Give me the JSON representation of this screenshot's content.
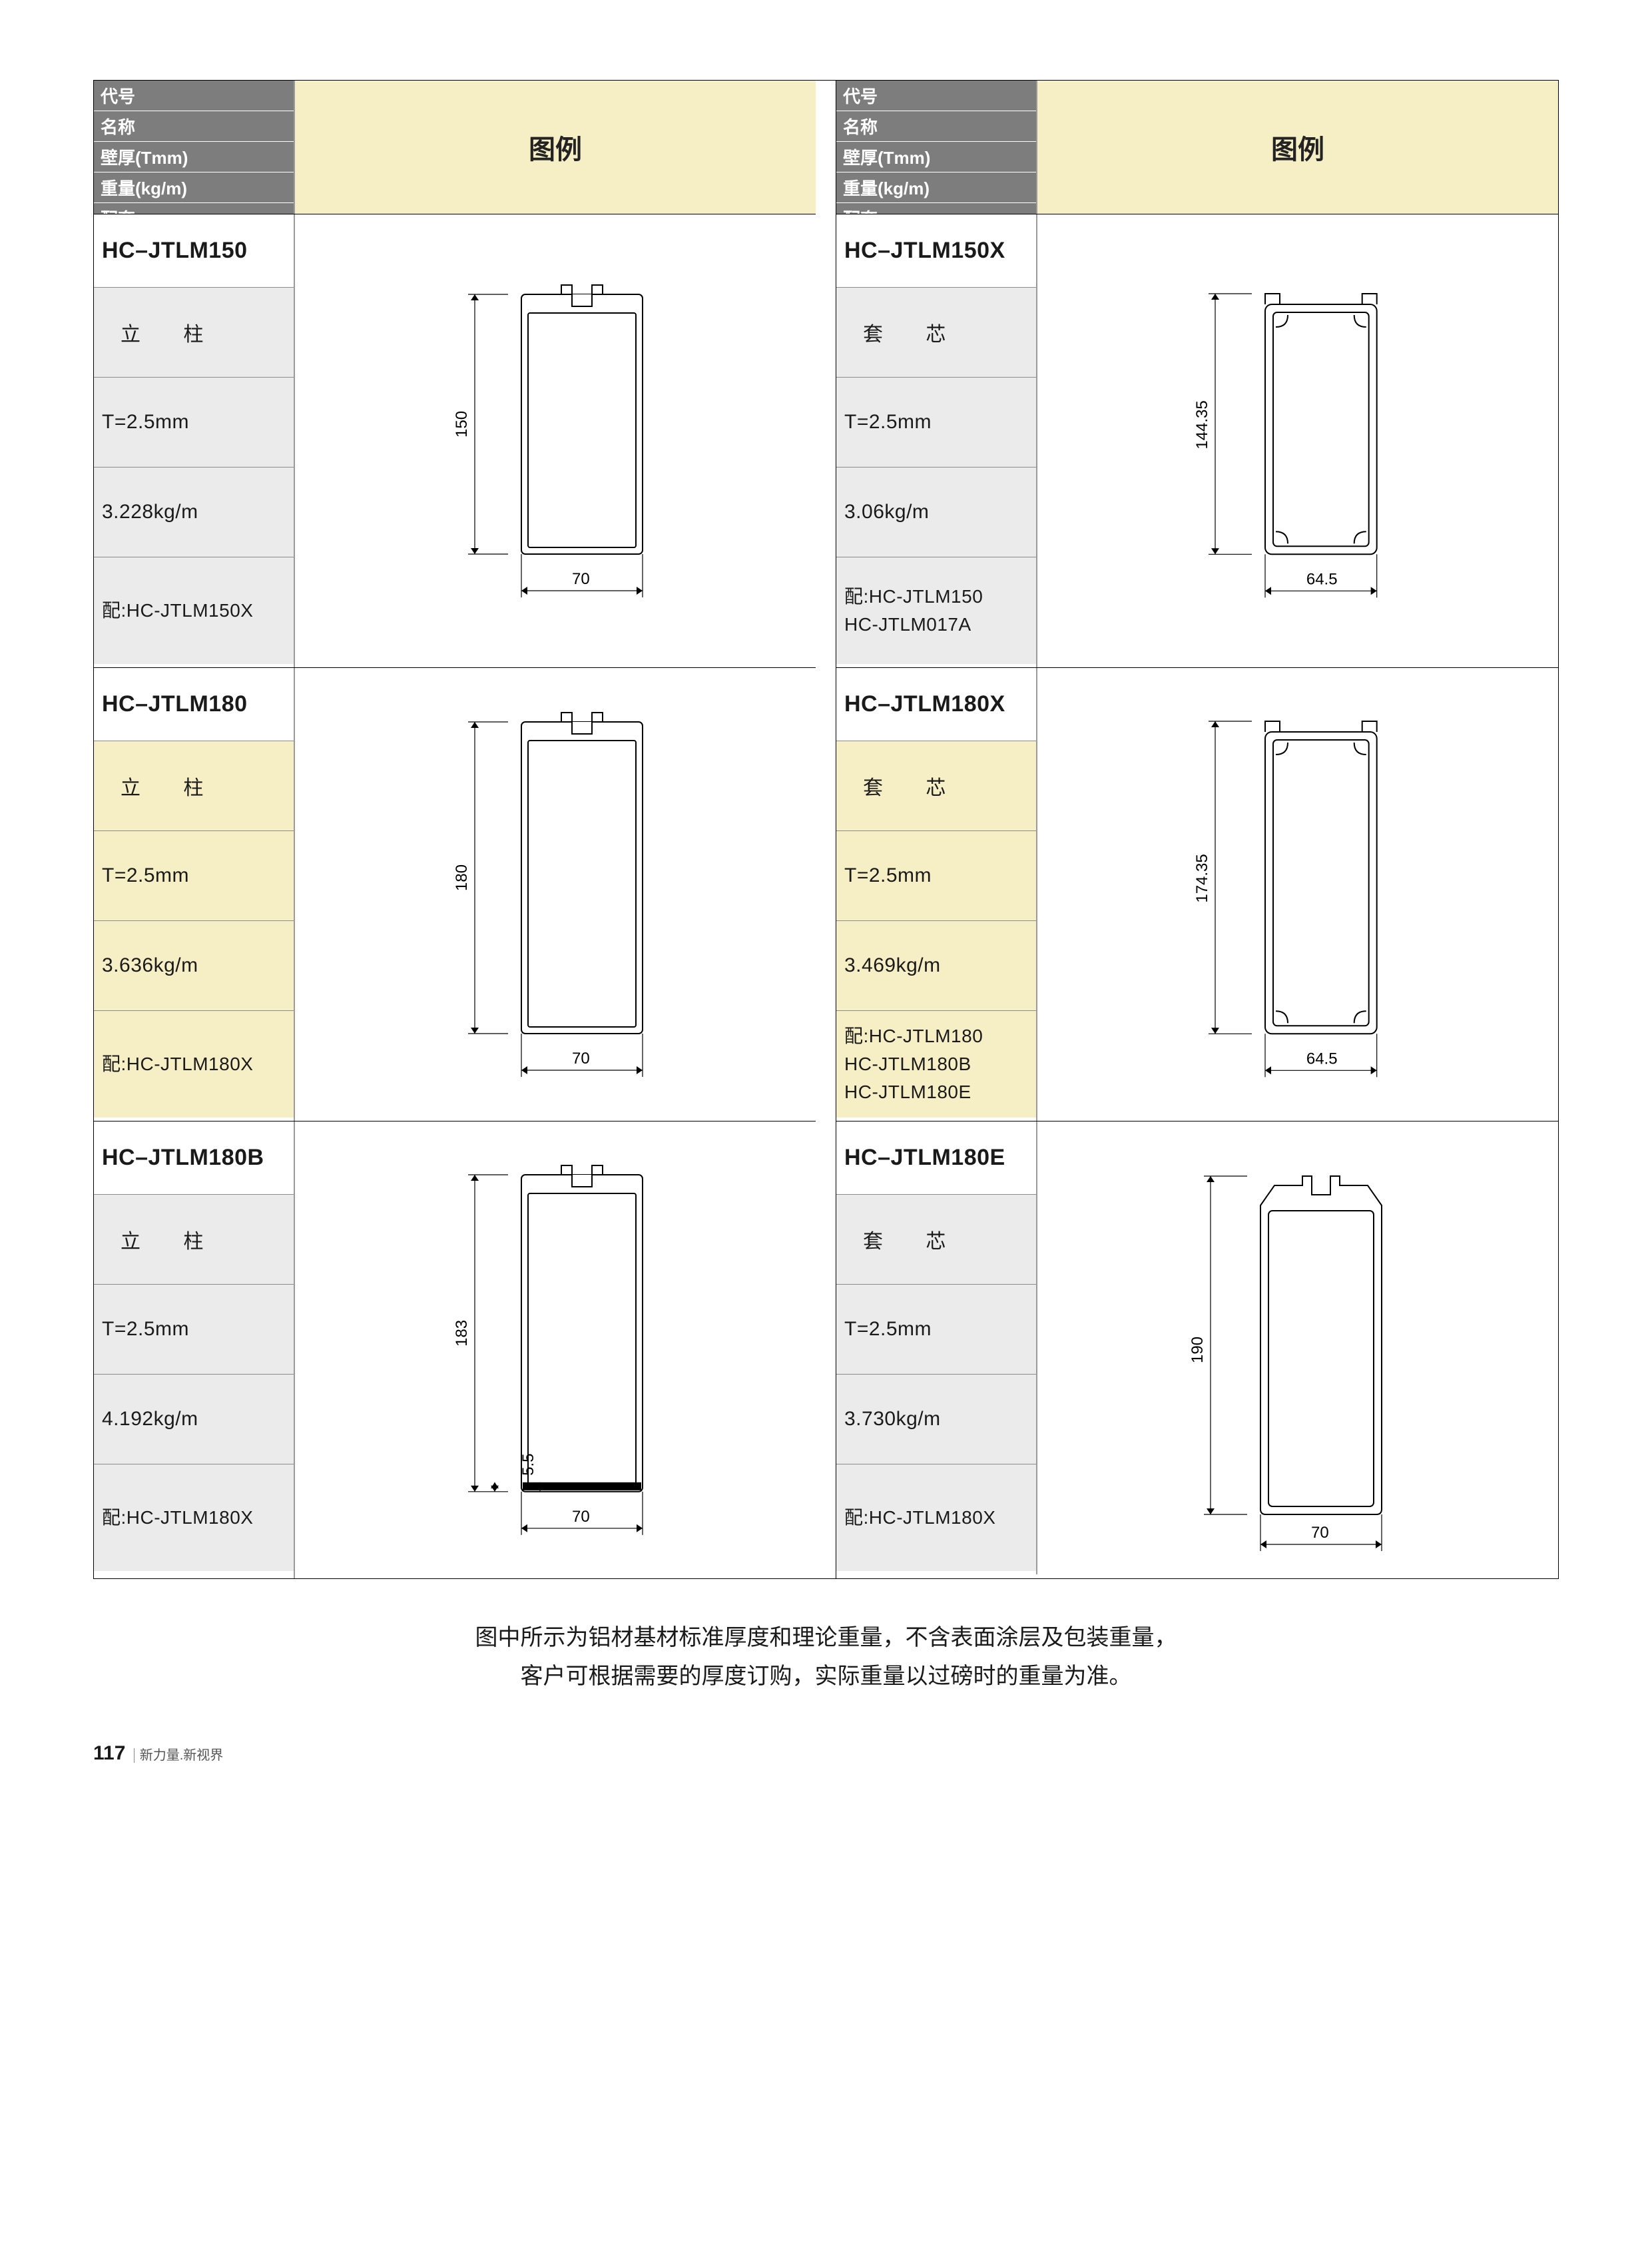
{
  "header": {
    "labels": [
      "代号",
      "名称",
      "壁厚(Tmm)",
      "重量(kg/m)",
      "配套"
    ],
    "title": "图例"
  },
  "columns": [
    {
      "products": [
        {
          "code": "HC–JTLM150",
          "name": "立 柱",
          "thickness": "T=2.5mm",
          "weight": "3.228kg/m",
          "pair": "配:HC-JTLM150X",
          "alt": false,
          "diagram": {
            "type": "post",
            "h": 150,
            "w": 70,
            "extra": null
          }
        },
        {
          "code": "HC–JTLM180",
          "name": "立 柱",
          "thickness": "T=2.5mm",
          "weight": "3.636kg/m",
          "pair": "配:HC-JTLM180X",
          "alt": true,
          "diagram": {
            "type": "post",
            "h": 180,
            "w": 70,
            "extra": null
          }
        },
        {
          "code": "HC–JTLM180B",
          "name": "立 柱",
          "thickness": "T=2.5mm",
          "weight": "4.192kg/m",
          "pair": "配:HC-JTLM180X",
          "alt": false,
          "diagram": {
            "type": "post",
            "h": 183,
            "w": 70,
            "extra": 5.5
          }
        }
      ]
    },
    {
      "products": [
        {
          "code": "HC–JTLM150X",
          "name": "套 芯",
          "thickness": "T=2.5mm",
          "weight": "3.06kg/m",
          "pair": "配:HC-JTLM150\n     HC-JTLM017A",
          "alt": false,
          "diagram": {
            "type": "core",
            "h": 144.35,
            "w": 64.5
          }
        },
        {
          "code": "HC–JTLM180X",
          "name": "套 芯",
          "thickness": "T=2.5mm",
          "weight": "3.469kg/m",
          "pair": "配:HC-JTLM180\n     HC-JTLM180B\n     HC-JTLM180E",
          "alt": true,
          "diagram": {
            "type": "core",
            "h": 174.35,
            "w": 64.5
          }
        },
        {
          "code": "HC–JTLM180E",
          "name": "套 芯",
          "thickness": "T=2.5mm",
          "weight": "3.730kg/m",
          "pair": "配:HC-JTLM180X",
          "alt": false,
          "diagram": {
            "type": "coreE",
            "h": 190,
            "w": 70
          }
        }
      ]
    }
  ],
  "footnote": "图中所示为铝材基材标准厚度和理论重量，不含表面涂层及包装重量，\n客户可根据需要的厚度订购，实际重量以过磅时的重量为准。",
  "page": {
    "number": "117",
    "caption": "新力量.新视界"
  },
  "colors": {
    "header_bg": "#7d7d7d",
    "title_bg": "#f6eec4",
    "cell_bg": "#ebebeb",
    "alt_bg": "#f6eec4",
    "border": "#000000"
  }
}
